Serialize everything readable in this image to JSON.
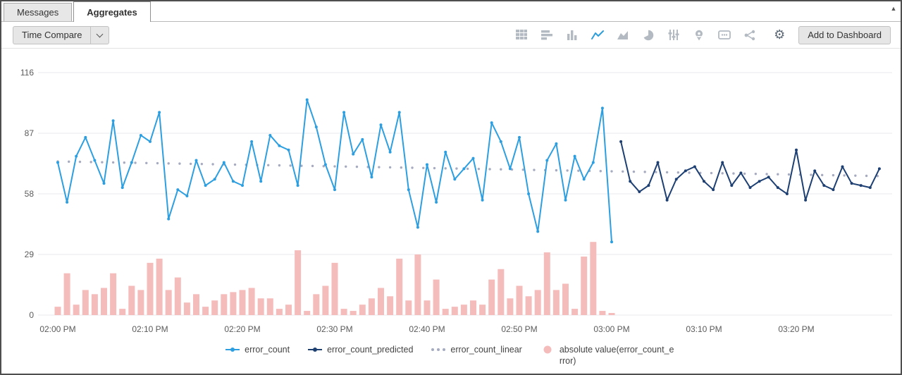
{
  "window": {
    "scroll_up_glyph": "▲"
  },
  "tabs": [
    {
      "label": "Messages",
      "active": false
    },
    {
      "label": "Aggregates",
      "active": true
    }
  ],
  "toolbar": {
    "time_compare_label": "Time Compare",
    "add_to_dashboard_label": "Add to Dashboard",
    "gear_glyph": "⚙",
    "icon_names": [
      "table",
      "bar-chart",
      "column-chart",
      "line-chart",
      "area-chart",
      "pie-chart",
      "sliders",
      "map-pin",
      "values-box",
      "flow",
      "gear"
    ],
    "active_icon": "line-chart"
  },
  "colors": {
    "accent_blue": "#2D9DDB",
    "error_count": "#2D9FE0",
    "error_count_predicted": "#1D3F72",
    "error_count_linear": "#A6ABC0",
    "error_bar_pink": "#F5BCBC",
    "inactive_icon": "#B3BAC2",
    "grid": "#E9EAEC"
  },
  "chart_data": {
    "type": "line",
    "title": "",
    "xlabel": "",
    "ylabel": "",
    "grid": true,
    "legend_position": "bottom",
    "x_axis": {
      "tick_minutes": [
        0,
        10,
        20,
        30,
        40,
        50,
        60,
        70,
        80
      ],
      "tick_labels": [
        "02:00 PM",
        "02:10 PM",
        "02:20 PM",
        "02:30 PM",
        "02:40 PM",
        "02:50 PM",
        "03:00 PM",
        "03:10 PM",
        "03:20 PM"
      ]
    },
    "y_axis": {
      "ticks": [
        0,
        29,
        58,
        87,
        116
      ],
      "ylim": [
        0,
        116
      ]
    },
    "series": [
      {
        "name": "error_count",
        "type": "line",
        "color": "#2D9FE0",
        "x_start_minute": 0,
        "values": [
          73,
          54,
          76,
          85,
          74,
          63,
          93,
          61,
          73,
          86,
          83,
          97,
          46,
          60,
          57,
          74,
          62,
          65,
          73,
          64,
          62,
          83,
          64,
          86,
          81,
          79,
          62,
          103,
          90,
          72,
          60,
          97,
          77,
          84,
          66,
          91,
          78,
          97,
          60,
          42,
          72,
          54,
          78,
          65,
          70,
          75,
          55,
          92,
          83,
          70,
          85,
          58,
          40,
          74,
          82,
          55,
          76,
          65,
          73,
          99,
          35
        ]
      },
      {
        "name": "error_count_predicted",
        "type": "line",
        "color": "#1D3F72",
        "x_start_minute": 61,
        "values": [
          83,
          64,
          59,
          62,
          73,
          55,
          65,
          69,
          71,
          64,
          60,
          73,
          62,
          68,
          61,
          64,
          66,
          61,
          58,
          79,
          55,
          69,
          62,
          60,
          71,
          63,
          62,
          61,
          70
        ]
      },
      {
        "name": "error_count_linear",
        "type": "dotted-line",
        "color": "#A6ABC0",
        "points": [
          [
            0,
            73.5
          ],
          [
            89,
            66.5
          ]
        ]
      },
      {
        "name": "absolute value(error_count_error)",
        "type": "bar",
        "color": "#F5BCBC",
        "x_start_minute": 0,
        "values": [
          4,
          20,
          5,
          12,
          10,
          13,
          20,
          3,
          14,
          12,
          25,
          27,
          12,
          18,
          6,
          10,
          4,
          7,
          10,
          11,
          12,
          13,
          8,
          8,
          3,
          5,
          31,
          2,
          10,
          14,
          25,
          3,
          2,
          5,
          8,
          13,
          9,
          27,
          7,
          29,
          7,
          17,
          3,
          4,
          5,
          7,
          5,
          17,
          22,
          8,
          14,
          9,
          12,
          30,
          12,
          15,
          3,
          28,
          35,
          2,
          1
        ]
      }
    ],
    "legend": [
      "error_count",
      "error_count_predicted",
      "error_count_linear",
      "absolute value(error_count_error)"
    ]
  }
}
